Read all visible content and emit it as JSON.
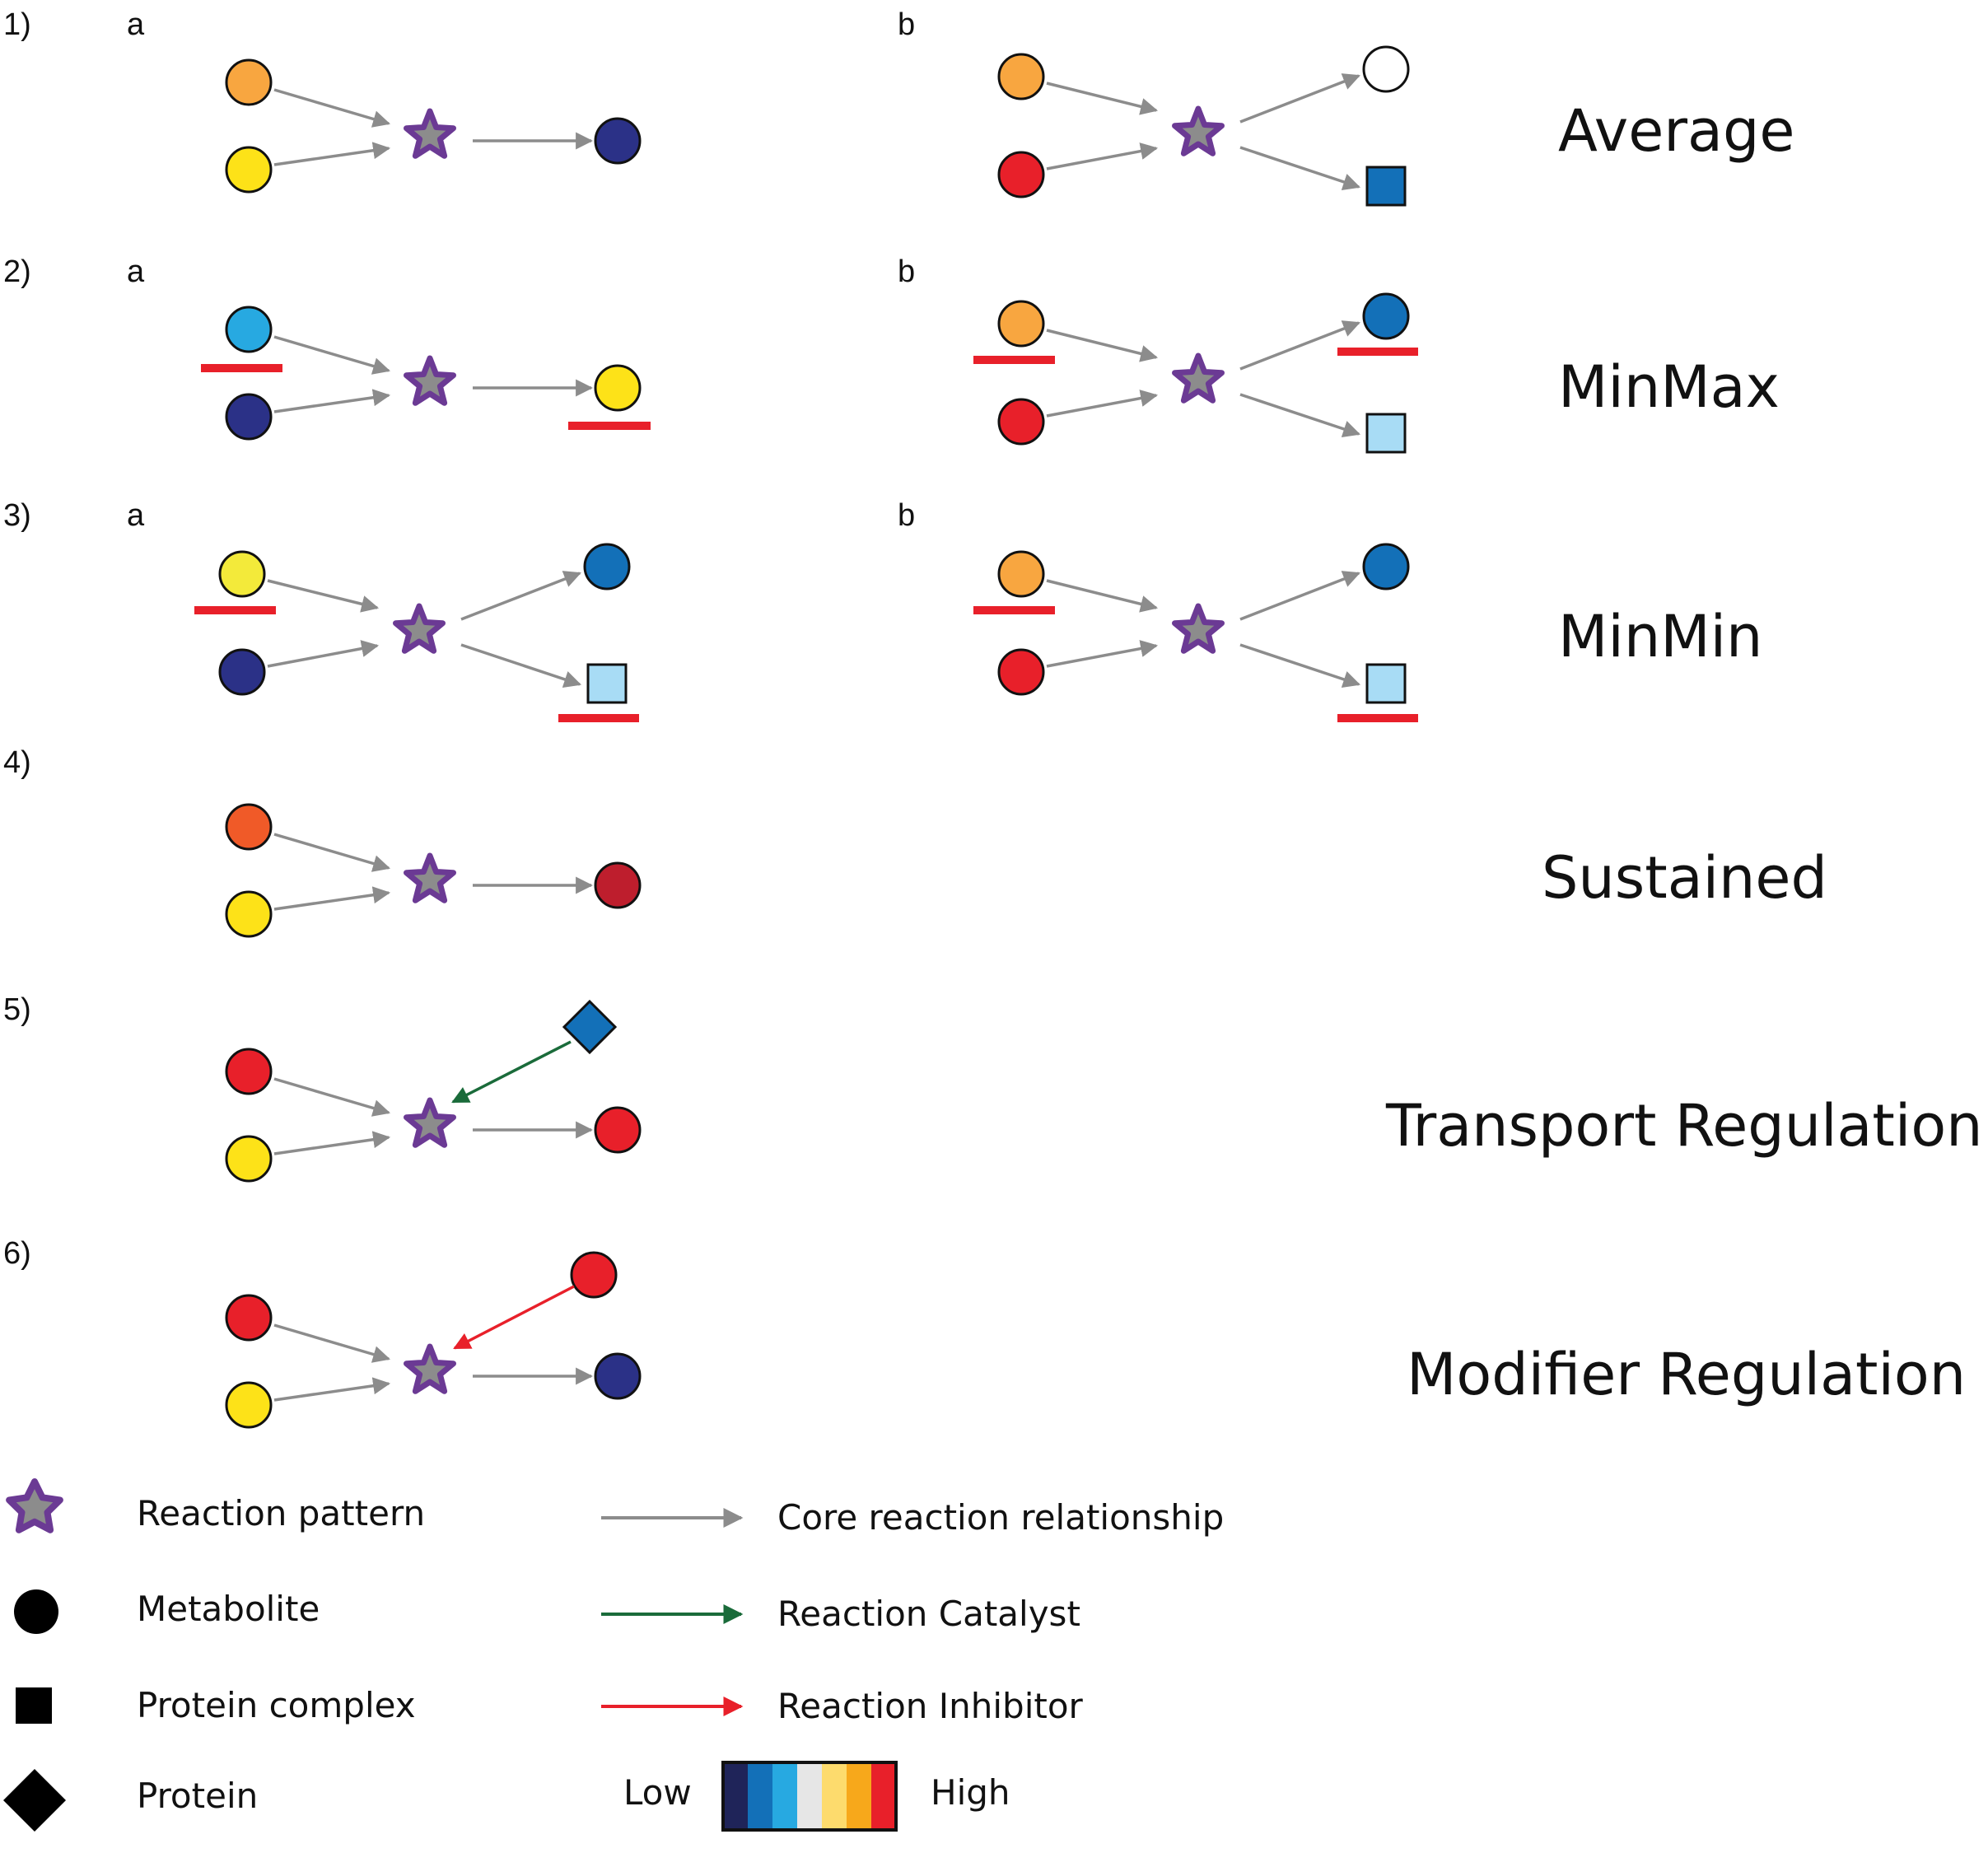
{
  "colors": {
    "edge_core": "#8c8c8c",
    "edge_catalyst": "#1a6b3a",
    "edge_inhibitor": "#e8202a",
    "star_fill": "#8c8c8c",
    "star_stroke": "#6b3a94",
    "node_stroke": "#111111",
    "threshold_bar": "#e8202a",
    "orange": "#f8a640",
    "yellow": "#fde218",
    "pale_yellow": "#f3ea3a",
    "navy": "#2b3187",
    "white": "#ffffff",
    "blue": "#1370b8",
    "sky": "#27a9e1",
    "light_blue": "#a8dcf5",
    "red": "#e8202a",
    "orange_red": "#f05a28",
    "dark_red": "#be1e2d"
  },
  "panels": [
    {
      "number": "1)",
      "a": "a",
      "b": "b",
      "rule": "Average"
    },
    {
      "number": "2)",
      "a": "a",
      "b": "b",
      "rule": "MinMax"
    },
    {
      "number": "3)",
      "a": "a",
      "b": "b",
      "rule": "MinMin"
    },
    {
      "number": "4)",
      "rule": "Sustained"
    },
    {
      "number": "5)",
      "rule": "Transport Regulation"
    },
    {
      "number": "6)",
      "rule": "Modifier Regulation"
    }
  ],
  "legend": {
    "shapes": [
      {
        "icon": "star-icon",
        "label": "Reaction pattern"
      },
      {
        "icon": "circle-icon",
        "label": "Metabolite"
      },
      {
        "icon": "square-icon",
        "label": "Protein complex"
      },
      {
        "icon": "diamond-icon",
        "label": "Protein"
      }
    ],
    "edges": [
      {
        "icon": "gray-arrow-icon",
        "label": "Core reaction relationship"
      },
      {
        "icon": "green-arrow-icon",
        "label": "Reaction Catalyst"
      },
      {
        "icon": "red-arrow-icon",
        "label": "Reaction Inhibitor"
      }
    ],
    "scale": {
      "low_label": "Low",
      "high_label": "High",
      "colors": [
        "#1f2459",
        "#1370b8",
        "#27a9e1",
        "#e6e6e6",
        "#fddb6d",
        "#f7a81b",
        "#e8202a"
      ]
    }
  }
}
